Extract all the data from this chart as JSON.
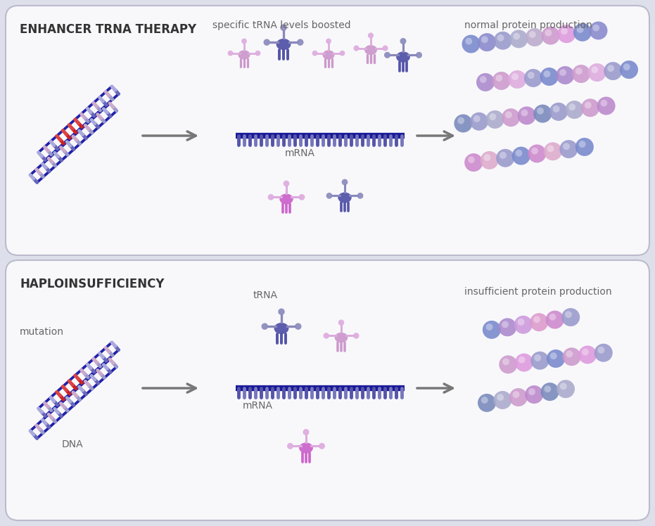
{
  "bg_color": "#dde0ea",
  "panel_bg": "#f8f8fb",
  "panel_border": "#bbbbcc",
  "title1": "HAPLOINSUFFICIENCY",
  "title2": "ENHANCER TRNA THERAPY",
  "label_mutation": "mutation",
  "label_dna": "DNA",
  "label_trna": "tRNA",
  "label_mrna": "mRNA",
  "label_insuff": "insufficient protein production",
  "label_boosted": "specific tRNA levels boosted",
  "label_normal": "normal protein production",
  "dna_blue": "#2020aa",
  "trna_dark_body": "#5555aa",
  "trna_dark_arms": "#8888bb",
  "trna_light_body": "#cc99cc",
  "trna_light_arms": "#ddaadd",
  "trna_pink_body": "#cc66cc",
  "mrna_blue": "#1a1a99",
  "arrow_color": "#777777",
  "text_color": "#666666",
  "title_color": "#333333"
}
